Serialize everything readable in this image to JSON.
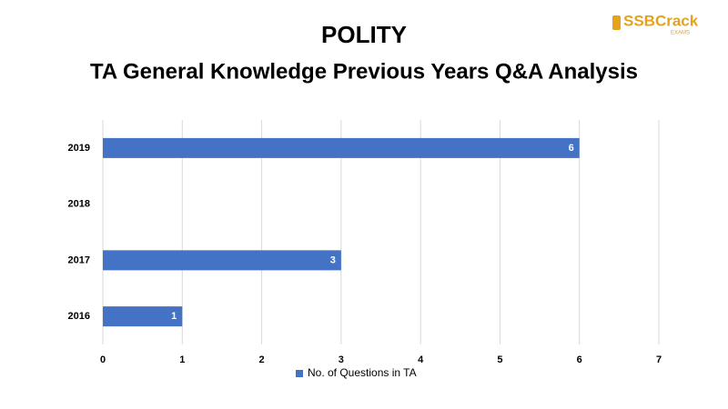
{
  "logo": {
    "text": "SSBCrack",
    "subtext": "EXAMS"
  },
  "chart_data": {
    "type": "bar",
    "orientation": "horizontal",
    "title": "POLITY",
    "subtitle": "TA General Knowledge Previous Years Q&A Analysis",
    "categories": [
      "2019",
      "2018",
      "2017",
      "2016"
    ],
    "series": [
      {
        "name": "No. of Questions in TA",
        "color": "#4472c4",
        "values": [
          6,
          null,
          3,
          1
        ]
      }
    ],
    "xlim": [
      0,
      7
    ],
    "xticks": [
      0,
      1,
      2,
      3,
      4,
      5,
      6,
      7
    ],
    "grid": true,
    "legend": "bottom"
  }
}
